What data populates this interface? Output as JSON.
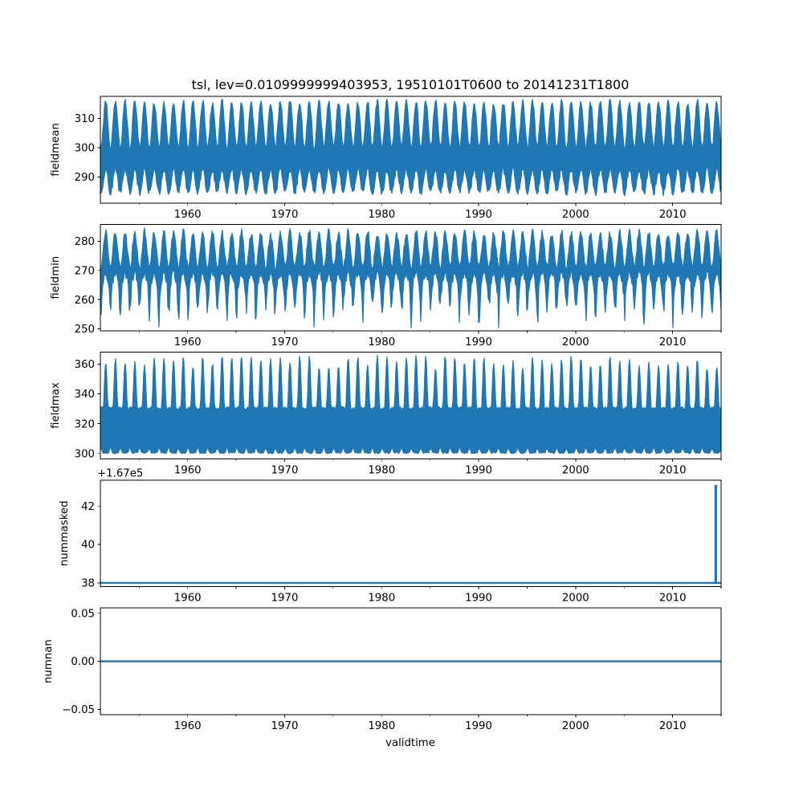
{
  "figure": {
    "title": "tsl, lev=0.0109999999403953, 19510101T0600 to 20141231T1800",
    "xlabel": "validtime",
    "background": "#ffffff",
    "line_color": "#1f77b4",
    "axis_color": "#000000",
    "x_domain": [
      1951.0,
      2015.0
    ],
    "x_major_ticks": [
      1960,
      1970,
      1980,
      1990,
      2000,
      2010
    ],
    "x_major_tick_labels": [
      "1960",
      "1970",
      "1980",
      "1990",
      "2000",
      "2010"
    ],
    "x_minor_ticks": [
      1955,
      1965,
      1975,
      1985,
      1995,
      2005,
      2015
    ]
  },
  "chart_data": [
    {
      "type": "line",
      "name": "fieldmean",
      "ylabel": "fieldmean",
      "yticks": [
        290,
        300,
        310
      ],
      "ytick_labels": [
        "290",
        "300",
        "310"
      ],
      "ylim": [
        281.2,
        317.5
      ],
      "description": "dense 6-hourly series 1951-2014; annual cycle, summer max ~315.6, winter min ~284.5",
      "envelope": {
        "upper": {
          "mode": "sin",
          "base": 307.8,
          "amp": 7.8,
          "noise": 1.0
        },
        "lower": {
          "mode": "sin",
          "base": 288.6,
          "amp": 4.0,
          "noise": 1.0
        }
      }
    },
    {
      "type": "line",
      "name": "fieldmin",
      "ylabel": "fieldmin",
      "yticks": [
        250,
        260,
        270,
        280
      ],
      "ytick_labels": [
        "250",
        "260",
        "270",
        "280"
      ],
      "ylim": [
        249.3,
        285.8
      ],
      "description": "dense 6-hourly series; summer peaks ~283, narrow winter spikes down to ~250.8",
      "envelope": {
        "upper": {
          "mode": "sin",
          "base": 277.0,
          "amp": 6.0,
          "noise": 1.2
        },
        "lower": {
          "mode": "sin",
          "base": 266.5,
          "amp": 2.5,
          "noise": 1.4
        },
        "spikes": {
          "amp": 12.5,
          "power": 3.5
        }
      }
    },
    {
      "type": "line",
      "name": "fieldmax",
      "ylabel": "fieldmax",
      "yticks": [
        300,
        320,
        340,
        360
      ],
      "ytick_labels": [
        "300",
        "320",
        "340",
        "360"
      ],
      "ylim": [
        296.4,
        368.1
      ],
      "description": "dense 6-hourly series; floor ~300 with small winter bumps, summer peaks ~355-364",
      "envelope": {
        "upper": {
          "mode": "halfsin",
          "base": 330.5,
          "amp": 31.5,
          "power": 1.6,
          "noise": 0.9
        },
        "lower": {
          "mode": "halfsin-neg",
          "base": 300.4,
          "amp": 3.2,
          "power": 2.0,
          "noise": 0.45
        }
      }
    },
    {
      "type": "line",
      "name": "nummasked",
      "ylabel": "nummasked",
      "yticks": [
        38,
        40,
        42
      ],
      "ytick_labels": [
        "38",
        "40",
        "42"
      ],
      "ylim": [
        37.8,
        43.35
      ],
      "offset_text": "+1.67e5",
      "baseline_value": 38,
      "spike": {
        "x_year": 2014.45,
        "value": 43.1
      },
      "description": "constant 167038 for whole record with single spike to ~167043 in 2014"
    },
    {
      "type": "line",
      "name": "numnan",
      "ylabel": "numnan",
      "yticks": [
        -0.05,
        0.0,
        0.05
      ],
      "ytick_labels": [
        "−0.05",
        "0.00",
        "0.05"
      ],
      "ylim": [
        -0.0555,
        0.0555
      ],
      "constant_value": 0,
      "description": "constant 0 for whole record"
    }
  ]
}
